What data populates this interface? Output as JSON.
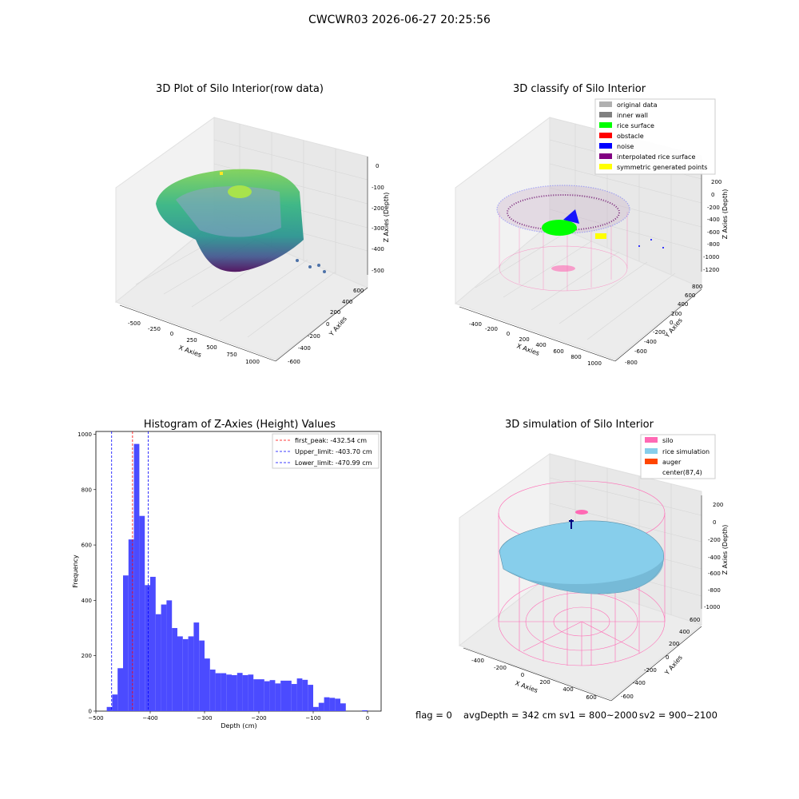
{
  "suptitle": "CWCWR03 2026-06-27 20:25:56",
  "status": {
    "flag": "flag = 0",
    "avg_depth": "avgDepth = 342 cm",
    "sv1": "sv1 = 800~2000",
    "sv2": "sv2 = 900~2100"
  },
  "colors": {
    "hist_bar": "#4b4bff",
    "peak_line": "#ff0000",
    "limit_line": "#0000ff",
    "silo": "#ff69b4",
    "rice_sim": "#87ceeb",
    "auger": "#ff4500",
    "rice_surface": "#00ff00",
    "obstacle": "#ff0000",
    "noise": "#0000ff",
    "interpolated": "#800080",
    "symmetric": "#ffff00",
    "inner_wall": "#808080",
    "original": "#b0b0b0"
  },
  "chart_data": [
    {
      "type": "scatter3d",
      "title": "3D Plot of Silo Interior(row data)",
      "xlabel": "X Axies",
      "ylabel": "Y Axies",
      "zlabel": "Z Axies (Depth)",
      "x_ticks": [
        "-500",
        "-250",
        "0",
        "250",
        "500",
        "750",
        "1000"
      ],
      "y_ticks": [
        "-600",
        "-400",
        "-200",
        "0",
        "200",
        "400",
        "600"
      ],
      "z_ticks": [
        "0",
        "-100",
        "-200",
        "-300",
        "-400",
        "-500"
      ],
      "colormap": "viridis"
    },
    {
      "type": "scatter3d",
      "title": "3D classify of Silo Interior",
      "xlabel": "X Axies",
      "ylabel": "Y Axies",
      "zlabel": "Z Axies (Depth)",
      "x_ticks": [
        "-400",
        "-200",
        "0",
        "200",
        "400",
        "600",
        "800",
        "1000"
      ],
      "y_ticks": [
        "-800",
        "-600",
        "-400",
        "-200",
        "0",
        "200",
        "400",
        "600",
        "800"
      ],
      "z_ticks": [
        "200",
        "0",
        "-200",
        "-400",
        "-600",
        "-800",
        "-1000",
        "-1200"
      ],
      "legend": [
        {
          "label": "original data",
          "color": "#b0b0b0"
        },
        {
          "label": "inner wall",
          "color": "#808080"
        },
        {
          "label": "rice surface",
          "color": "#00ff00"
        },
        {
          "label": "obstacle",
          "color": "#ff0000"
        },
        {
          "label": "noise",
          "color": "#0000ff"
        },
        {
          "label": "interpolated rice surface",
          "color": "#800080"
        },
        {
          "label": "symmetric generated points",
          "color": "#ffff00"
        }
      ],
      "legend_loc": "upper right"
    },
    {
      "type": "bar",
      "title": "Histogram of Z-Axies (Height) Values",
      "xlabel": "Depth (cm)",
      "ylabel": "Frequency",
      "xlim": [
        -500,
        25
      ],
      "ylim": [
        0,
        1010
      ],
      "x_ticks": [
        -500,
        -400,
        -300,
        -200,
        -100,
        0
      ],
      "y_ticks": [
        0,
        200,
        400,
        600,
        800,
        1000
      ],
      "bin_width": 10,
      "bin_starts": [
        -480,
        -470,
        -460,
        -450,
        -440,
        -430,
        -420,
        -410,
        -400,
        -390,
        -380,
        -370,
        -360,
        -350,
        -340,
        -330,
        -320,
        -310,
        -300,
        -290,
        -280,
        -270,
        -260,
        -250,
        -240,
        -230,
        -220,
        -210,
        -200,
        -190,
        -180,
        -170,
        -160,
        -150,
        -140,
        -130,
        -120,
        -110,
        -100,
        -90,
        -80,
        -70,
        -60,
        -50,
        -10
      ],
      "values": [
        15,
        60,
        155,
        490,
        620,
        965,
        705,
        455,
        485,
        350,
        385,
        400,
        300,
        270,
        260,
        270,
        320,
        255,
        190,
        150,
        137,
        137,
        132,
        130,
        138,
        130,
        132,
        115,
        115,
        108,
        112,
        100,
        110,
        110,
        98,
        118,
        113,
        95,
        15,
        30,
        50,
        48,
        45,
        28,
        3
      ],
      "vlines": [
        {
          "x": -432.54,
          "label": "first_peak: -432.54 cm",
          "color": "#ff0000"
        },
        {
          "x": -403.7,
          "label": "Upper_limit: -403.70 cm",
          "color": "#0000ff"
        },
        {
          "x": -470.99,
          "label": "Lower_limit: -470.99 cm",
          "color": "#0000ff"
        }
      ],
      "legend_loc": "upper right"
    },
    {
      "type": "surface3d",
      "title": "3D simulation of Silo Interior",
      "xlabel": "X Axies",
      "ylabel": "Y Axies",
      "zlabel": "Z Axies (Depth)",
      "x_ticks": [
        "-400",
        "-200",
        "0",
        "200",
        "400",
        "600"
      ],
      "y_ticks": [
        "-600",
        "-400",
        "-200",
        "0",
        "200",
        "400",
        "600"
      ],
      "z_ticks": [
        "200",
        "0",
        "-200",
        "-400",
        "-600",
        "-800",
        "-1000"
      ],
      "legend": [
        {
          "label": "silo",
          "color": "#ff69b4"
        },
        {
          "label": "rice simulation",
          "color": "#87ceeb"
        },
        {
          "label": "auger",
          "color": "#ff4500"
        },
        {
          "label": "center(87,4)",
          "color": "none"
        }
      ],
      "legend_loc": "upper right"
    }
  ]
}
